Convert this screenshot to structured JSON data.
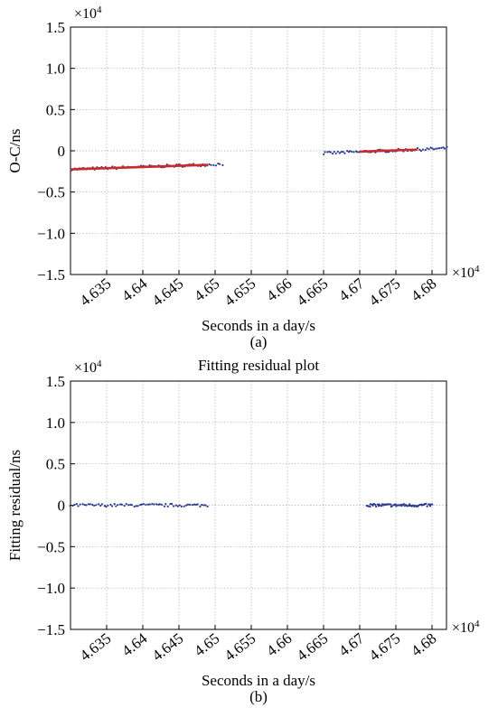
{
  "chart_data": [
    {
      "type": "scatter",
      "panel_label": "(a)",
      "title": "",
      "xlabel": "Seconds in a day/s",
      "ylabel": "O-C/ns",
      "x_multiplier": "×10",
      "x_multiplier_exp": "4",
      "y_multiplier": "×10",
      "y_multiplier_exp": "4",
      "xlim": [
        4.63,
        4.682
      ],
      "ylim": [
        -1.5,
        1.5
      ],
      "xticks": [
        "4.635",
        "4.64",
        "4.645",
        "4.65",
        "4.655",
        "4.66",
        "4.665",
        "4.67",
        "4.675",
        "4.68"
      ],
      "yticks": [
        "1.5",
        "1.0",
        "0.5",
        "0",
        "−0.5",
        "−1.0",
        "−1.5"
      ],
      "grid": true,
      "series": [
        {
          "color": "#2a3a8c",
          "segments": [
            {
              "x": [
                4.63,
                4.651
              ],
              "y": [
                -0.225,
                -0.16
              ]
            },
            {
              "x": [
                4.665,
                4.682
              ],
              "y": [
                -0.03,
                0.03
              ]
            }
          ]
        },
        {
          "color": "#cc2a2a",
          "fit_lines": [
            {
              "x": [
                4.63,
                4.649
              ],
              "y": [
                -0.225,
                -0.17
              ]
            },
            {
              "x": [
                4.67,
                4.678
              ],
              "y": [
                -0.01,
                0.015
              ]
            }
          ]
        }
      ]
    },
    {
      "type": "scatter",
      "panel_label": "(b)",
      "title": "Fitting residual plot",
      "xlabel": "Seconds in a day/s",
      "ylabel": "Fitting residual/ns",
      "x_multiplier": "×10",
      "x_multiplier_exp": "4",
      "y_multiplier": "×10",
      "y_multiplier_exp": "4",
      "xlim": [
        4.63,
        4.682
      ],
      "ylim": [
        -1.5,
        1.5
      ],
      "xticks": [
        "4.635",
        "4.64",
        "4.645",
        "4.65",
        "4.655",
        "4.66",
        "4.665",
        "4.67",
        "4.675",
        "4.68"
      ],
      "yticks": [
        "1.5",
        "1.0",
        "0.5",
        "0",
        "−0.5",
        "−1.0",
        "−1.5"
      ],
      "grid": true,
      "series": [
        {
          "color": "#2a3a8c",
          "segments": [
            {
              "x": [
                4.63,
                4.649
              ],
              "y": [
                0,
                0
              ]
            },
            {
              "x": [
                4.671,
                4.68
              ],
              "y": [
                0,
                0
              ]
            }
          ]
        }
      ]
    }
  ]
}
